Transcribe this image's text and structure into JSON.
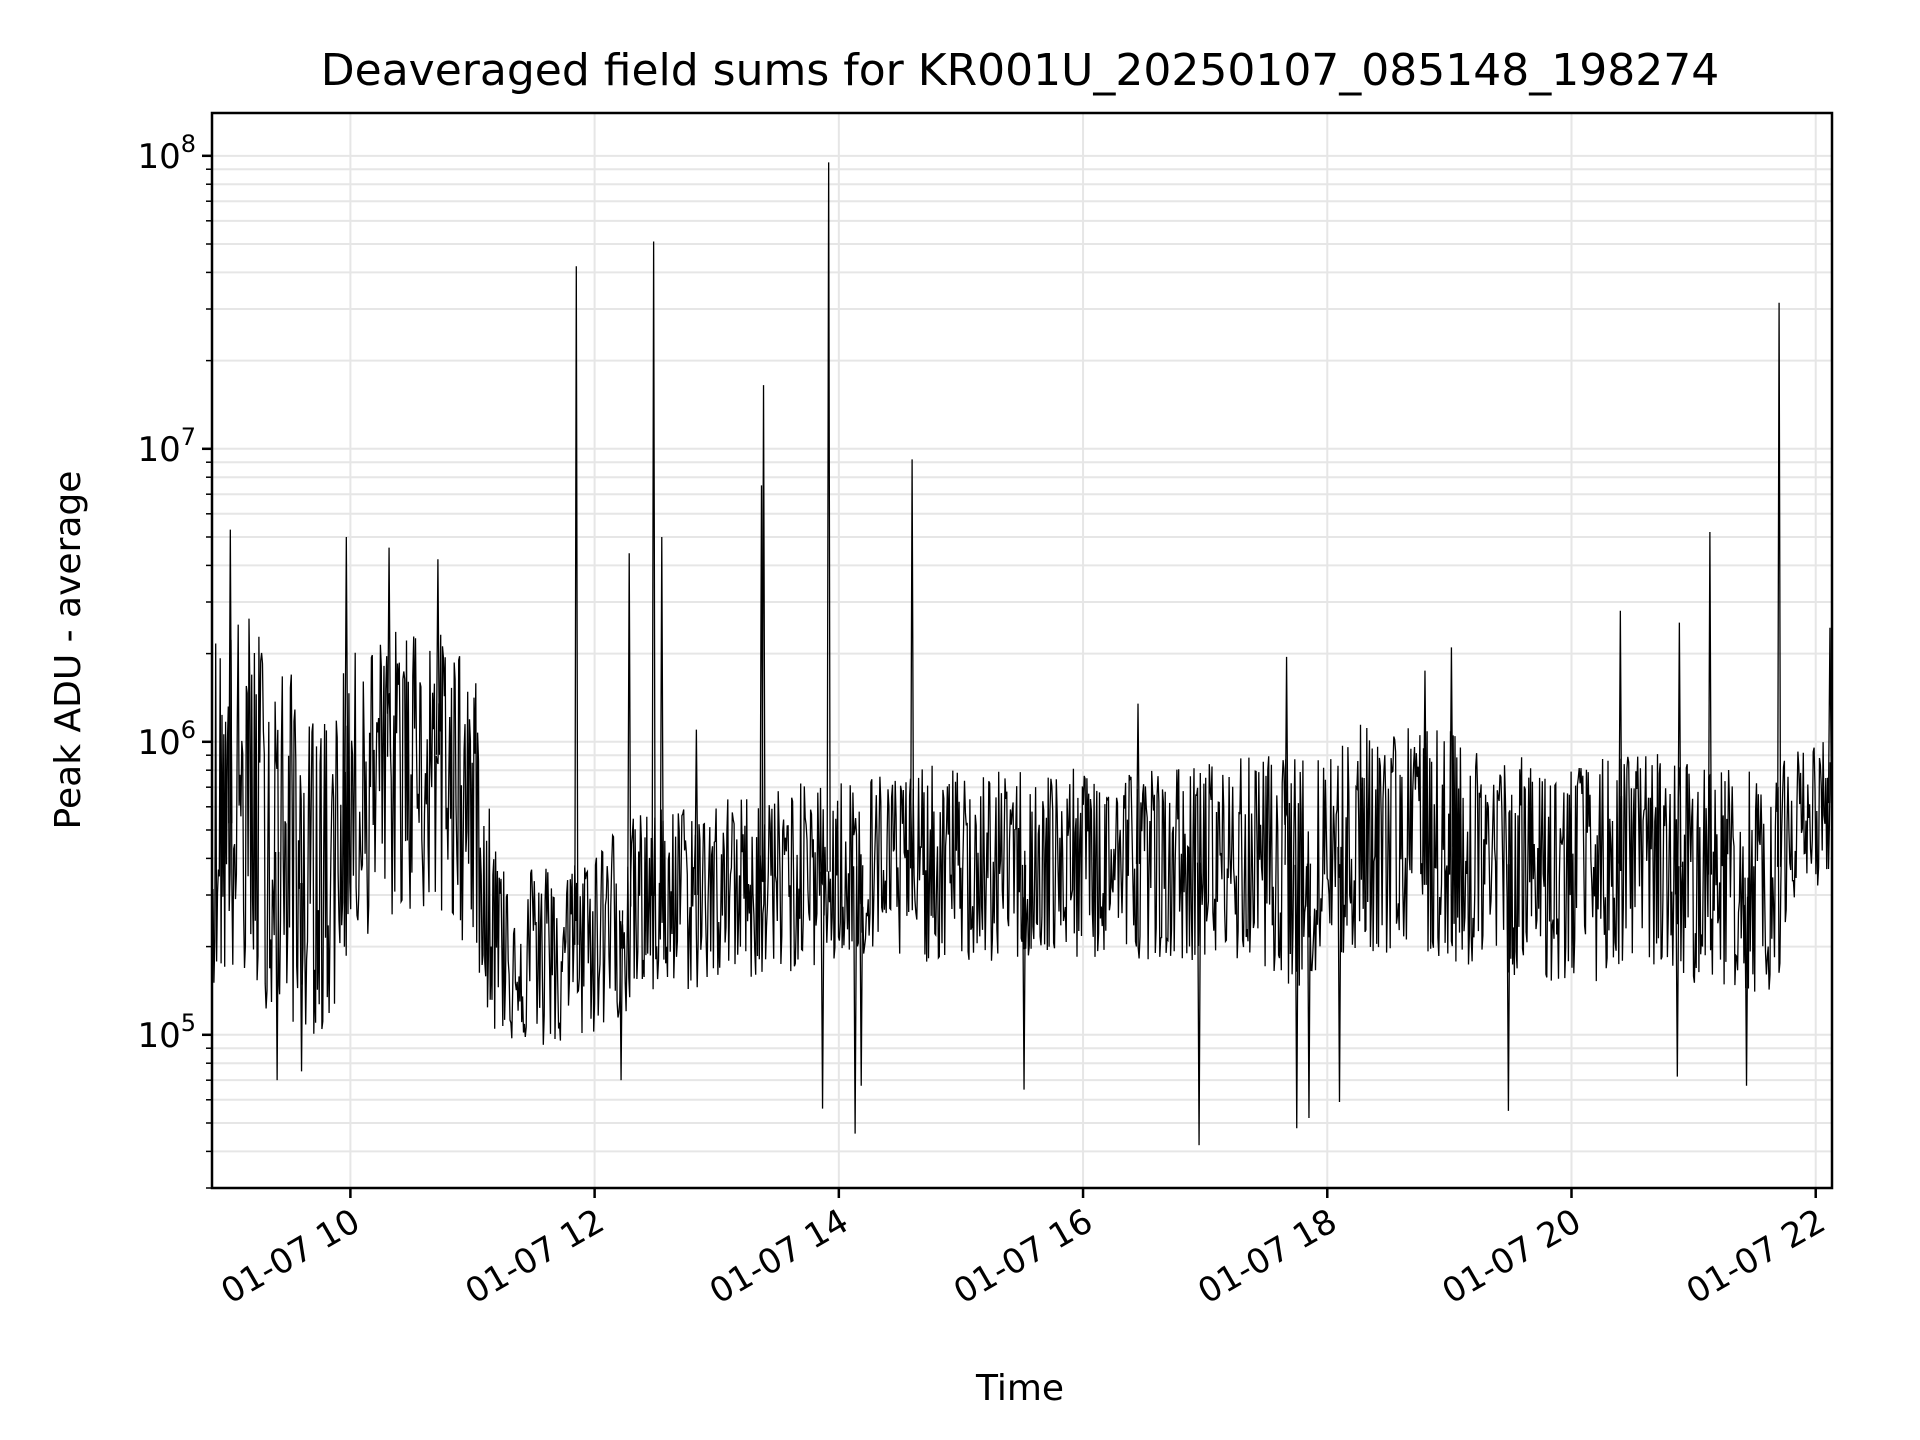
{
  "chart_data": {
    "type": "line",
    "title": "Deaveraged field sums for KR001U_20250107_085148_198274",
    "xlabel": "Time",
    "ylabel": "Peak ADU - average",
    "x_range": [
      "2025-01-07T08:52",
      "2025-01-07T22:08"
    ],
    "y_range": [
      30000,
      140000000
    ],
    "y_scale": "log",
    "grid": true,
    "legend": "none",
    "x_ticks": [
      {
        "value": "2025-01-07T10:00",
        "label": "01-07 10"
      },
      {
        "value": "2025-01-07T12:00",
        "label": "01-07 12"
      },
      {
        "value": "2025-01-07T14:00",
        "label": "01-07 14"
      },
      {
        "value": "2025-01-07T16:00",
        "label": "01-07 16"
      },
      {
        "value": "2025-01-07T18:00",
        "label": "01-07 18"
      },
      {
        "value": "2025-01-07T20:00",
        "label": "01-07 20"
      },
      {
        "value": "2025-01-07T22:00",
        "label": "01-07 22"
      }
    ],
    "y_ticks": [
      {
        "value": 100000,
        "base": "10",
        "exp": "5"
      },
      {
        "value": 1000000,
        "base": "10",
        "exp": "6"
      },
      {
        "value": 10000000,
        "base": "10",
        "exp": "7"
      },
      {
        "value": 100000000,
        "base": "10",
        "exp": "8"
      }
    ],
    "color": "#000000",
    "series": [
      {
        "x": [
          "2025-01-07T08:52",
          "2025-01-07T09:00",
          "2025-01-07T09:10",
          "2025-01-07T09:20",
          "2025-01-07T09:30",
          "2025-01-07T09:40",
          "2025-01-07T09:50",
          "2025-01-07T10:00",
          "2025-01-07T10:10",
          "2025-01-07T10:20",
          "2025-01-07T10:30",
          "2025-01-07T10:40",
          "2025-01-07T10:50",
          "2025-01-07T11:00",
          "2025-01-07T11:10",
          "2025-01-07T11:20",
          "2025-01-07T11:30",
          "2025-01-07T11:40",
          "2025-01-07T11:50",
          "2025-01-07T12:00",
          "2025-01-07T12:10",
          "2025-01-07T12:20",
          "2025-01-07T12:30",
          "2025-01-07T12:40",
          "2025-01-07T12:50",
          "2025-01-07T13:00",
          "2025-01-07T13:10",
          "2025-01-07T13:20",
          "2025-01-07T13:30",
          "2025-01-07T13:40",
          "2025-01-07T13:50",
          "2025-01-07T14:00",
          "2025-01-07T14:10",
          "2025-01-07T14:20",
          "2025-01-07T14:30",
          "2025-01-07T14:40",
          "2025-01-07T14:50",
          "2025-01-07T15:00",
          "2025-01-07T15:10",
          "2025-01-07T15:20",
          "2025-01-07T15:30",
          "2025-01-07T15:40",
          "2025-01-07T15:50",
          "2025-01-07T16:00",
          "2025-01-07T16:10",
          "2025-01-07T16:20",
          "2025-01-07T16:30",
          "2025-01-07T16:40",
          "2025-01-07T16:50",
          "2025-01-07T17:00",
          "2025-01-07T17:10",
          "2025-01-07T17:20",
          "2025-01-07T17:30",
          "2025-01-07T17:40",
          "2025-01-07T17:50",
          "2025-01-07T18:00",
          "2025-01-07T18:10",
          "2025-01-07T18:20",
          "2025-01-07T18:30",
          "2025-01-07T18:40",
          "2025-01-07T18:50",
          "2025-01-07T19:00",
          "2025-01-07T19:10",
          "2025-01-07T19:20",
          "2025-01-07T19:30",
          "2025-01-07T19:40",
          "2025-01-07T19:50",
          "2025-01-07T20:00",
          "2025-01-07T20:10",
          "2025-01-07T20:20",
          "2025-01-07T20:30",
          "2025-01-07T20:40",
          "2025-01-07T20:50",
          "2025-01-07T21:00",
          "2025-01-07T21:10",
          "2025-01-07T21:20",
          "2025-01-07T21:30",
          "2025-01-07T21:40",
          "2025-01-07T21:50",
          "2025-01-07T22:00",
          "2025-01-07T22:08"
        ],
        "y": [
          500000,
          520000,
          600000,
          450000,
          380000,
          300000,
          330000,
          700000,
          800000,
          900000,
          1000000,
          950000,
          800000,
          700000,
          220000,
          200000,
          190000,
          180000,
          200000,
          230000,
          260000,
          280000,
          300000,
          310000,
          300000,
          320000,
          330000,
          330000,
          340000,
          350000,
          360000,
          360000,
          380000,
          370000,
          370000,
          370000,
          380000,
          370000,
          360000,
          370000,
          380000,
          380000,
          370000,
          380000,
          380000,
          390000,
          380000,
          390000,
          380000,
          390000,
          390000,
          400000,
          400000,
          380000,
          380000,
          420000,
          450000,
          480000,
          460000,
          450000,
          450000,
          440000,
          420000,
          400000,
          380000,
          370000,
          360000,
          350000,
          360000,
          380000,
          390000,
          400000,
          380000,
          360000,
          350000,
          350000,
          340000,
          340000,
          550000,
          600000,
          620000
        ],
        "band_high": [
          2500000,
          2600000,
          2800000,
          2200000,
          1800000,
          1200000,
          1300000,
          2000000,
          2200000,
          2400000,
          2600000,
          2500000,
          2200000,
          2000000,
          500000,
          420000,
          400000,
          380000,
          400000,
          460000,
          520000,
          560000,
          600000,
          620000,
          600000,
          640000,
          660000,
          680000,
          700000,
          720000,
          740000,
          760000,
          780000,
          800000,
          800000,
          820000,
          840000,
          800000,
          780000,
          800000,
          820000,
          820000,
          800000,
          820000,
          820000,
          840000,
          820000,
          840000,
          820000,
          860000,
          860000,
          900000,
          920000,
          880000,
          900000,
          1000000,
          1100000,
          1200000,
          1150000,
          1150000,
          1150000,
          1100000,
          1000000,
          950000,
          900000,
          880000,
          860000,
          840000,
          860000,
          900000,
          920000,
          940000,
          900000,
          860000,
          840000,
          820000,
          800000,
          800000,
          950000,
          1000000,
          1050000
        ],
        "band_low": [
          150000,
          150000,
          140000,
          120000,
          110000,
          100000,
          100000,
          200000,
          220000,
          240000,
          260000,
          250000,
          220000,
          200000,
          100000,
          95000,
          90000,
          88000,
          92000,
          100000,
          110000,
          120000,
          130000,
          140000,
          140000,
          150000,
          155000,
          155000,
          160000,
          165000,
          170000,
          170000,
          180000,
          175000,
          175000,
          175000,
          180000,
          175000,
          170000,
          175000,
          180000,
          180000,
          175000,
          180000,
          180000,
          185000,
          180000,
          185000,
          180000,
          180000,
          180000,
          175000,
          170000,
          150000,
          140000,
          170000,
          180000,
          190000,
          185000,
          180000,
          180000,
          175000,
          170000,
          165000,
          160000,
          155000,
          150000,
          145000,
          150000,
          160000,
          165000,
          170000,
          160000,
          150000,
          145000,
          145000,
          140000,
          140000,
          300000,
          320000,
          340000
        ]
      }
    ],
    "spikes": [
      {
        "x": "2025-01-07T11:51",
        "y": 42000000
      },
      {
        "x": "2025-01-07T12:17",
        "y": 4400000
      },
      {
        "x": "2025-01-07T12:29",
        "y": 51000000
      },
      {
        "x": "2025-01-07T12:33",
        "y": 5000000
      },
      {
        "x": "2025-01-07T12:50",
        "y": 1100000
      },
      {
        "x": "2025-01-07T13:22",
        "y": 7500000
      },
      {
        "x": "2025-01-07T13:23",
        "y": 16500000
      },
      {
        "x": "2025-01-07T13:55",
        "y": 95000000
      },
      {
        "x": "2025-01-07T14:36",
        "y": 9200000
      },
      {
        "x": "2025-01-07T16:27",
        "y": 1350000
      },
      {
        "x": "2025-01-07T17:40",
        "y": 1950000
      },
      {
        "x": "2025-01-07T18:48",
        "y": 1750000
      },
      {
        "x": "2025-01-07T19:01",
        "y": 2100000
      },
      {
        "x": "2025-01-07T20:24",
        "y": 2800000
      },
      {
        "x": "2025-01-07T20:53",
        "y": 2550000
      },
      {
        "x": "2025-01-07T21:08",
        "y": 5200000
      },
      {
        "x": "2025-01-07T21:42",
        "y": 31500000
      },
      {
        "x": "2025-01-07T22:07",
        "y": 2450000
      },
      {
        "x": "2025-01-07T09:01",
        "y": 5300000
      },
      {
        "x": "2025-01-07T09:58",
        "y": 5000000
      },
      {
        "x": "2025-01-07T10:19",
        "y": 4600000
      },
      {
        "x": "2025-01-07T10:43",
        "y": 4200000
      }
    ],
    "dips": [
      {
        "x": "2025-01-07T09:24",
        "y": 70000
      },
      {
        "x": "2025-01-07T09:36",
        "y": 75000
      },
      {
        "x": "2025-01-07T12:13",
        "y": 70000
      },
      {
        "x": "2025-01-07T13:52",
        "y": 56000
      },
      {
        "x": "2025-01-07T14:08",
        "y": 46000
      },
      {
        "x": "2025-01-07T14:11",
        "y": 67000
      },
      {
        "x": "2025-01-07T15:31",
        "y": 65000
      },
      {
        "x": "2025-01-07T16:57",
        "y": 42000
      },
      {
        "x": "2025-01-07T17:45",
        "y": 48000
      },
      {
        "x": "2025-01-07T17:51",
        "y": 52000
      },
      {
        "x": "2025-01-07T18:06",
        "y": 59000
      },
      {
        "x": "2025-01-07T19:29",
        "y": 55000
      },
      {
        "x": "2025-01-07T20:52",
        "y": 72000
      },
      {
        "x": "2025-01-07T21:26",
        "y": 67000
      }
    ]
  }
}
